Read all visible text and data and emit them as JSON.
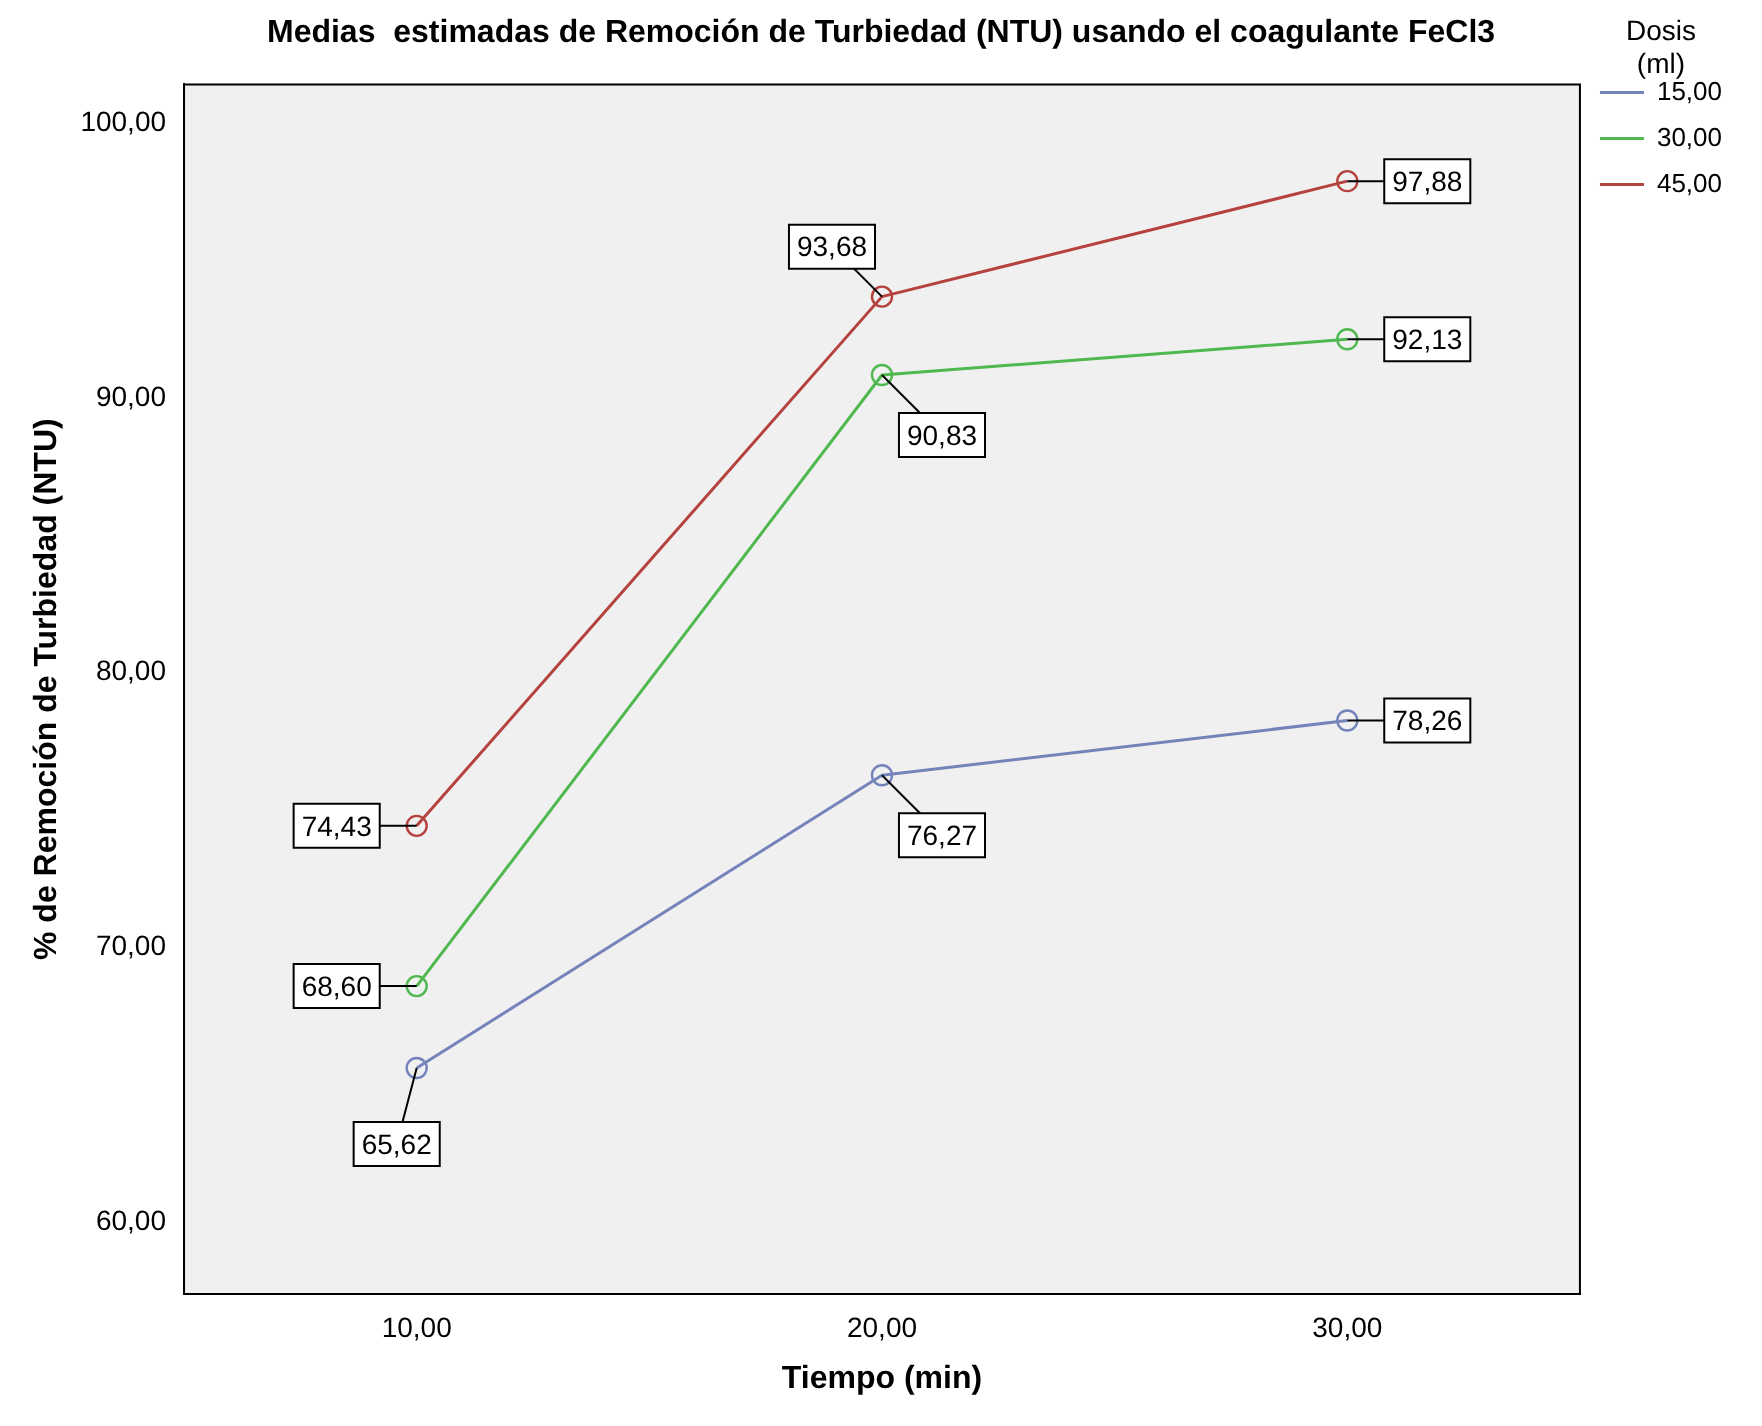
{
  "chart_data": {
    "type": "line",
    "title": "Medias  estimadas de Remoción de Turbiedad (NTU) usando el coagulante FeCl3",
    "xlabel": "Tiempo (min)",
    "ylabel": "% de Remoción de Turbiedad (NTU)",
    "legend_title": "Dosis (ml)",
    "legend": "top right",
    "marker": "circle",
    "line_style": "solid",
    "grid": false,
    "categories": [
      "10,00",
      "20,00",
      "30,00"
    ],
    "ylim": [
      57.4,
      101.4
    ],
    "yticks": [
      {
        "value": 60,
        "label": "60,00"
      },
      {
        "value": 70,
        "label": "70,00"
      },
      {
        "value": 80,
        "label": "80,00"
      },
      {
        "value": 90,
        "label": "90,00"
      },
      {
        "value": 100,
        "label": "100,00"
      }
    ],
    "series": [
      {
        "name": "15,00",
        "color": "#7583bb",
        "values": [
          65.62,
          76.27,
          78.26
        ],
        "value_labels": [
          "65,62",
          "76,27",
          "78,26"
        ]
      },
      {
        "name": "30,00",
        "color": "#4fb84f",
        "values": [
          68.6,
          90.83,
          92.13
        ],
        "value_labels": [
          "68,60",
          "90,83",
          "92,13"
        ]
      },
      {
        "name": "45,00",
        "color": "#b5423e",
        "values": [
          74.43,
          93.68,
          97.88
        ],
        "value_labels": [
          "74,43",
          "93,68",
          "97,88"
        ]
      }
    ]
  }
}
